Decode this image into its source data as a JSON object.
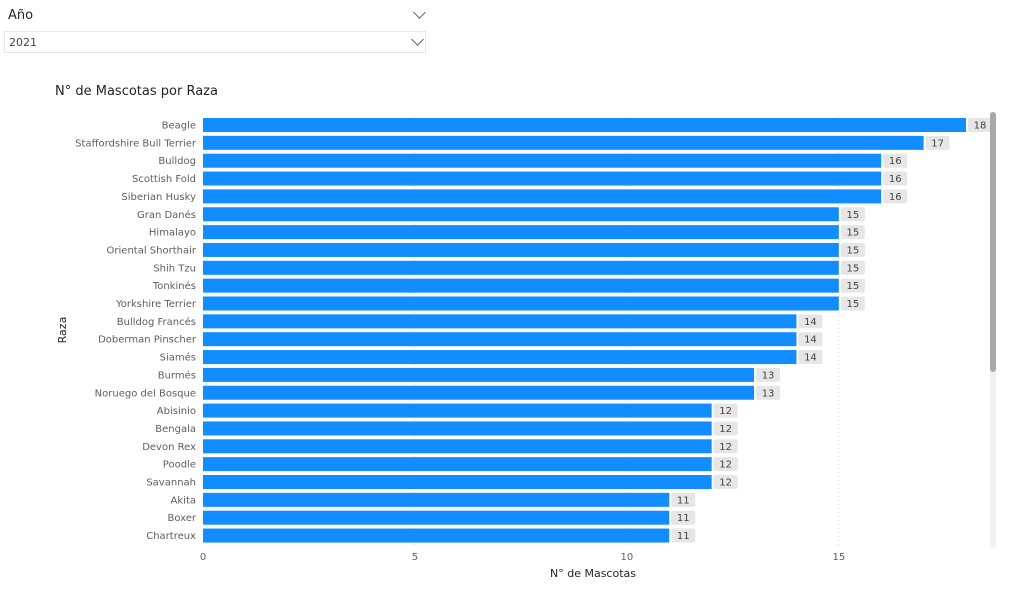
{
  "slicer": {
    "label": "Año",
    "selected": "2021"
  },
  "chart_data": {
    "type": "bar",
    "orientation": "horizontal",
    "title": "N° de Mascotas por Raza",
    "xlabel": "N° de Mascotas",
    "ylabel": "Raza",
    "xlim": [
      0,
      18
    ],
    "xticks": [
      "0",
      "5",
      "10",
      "15"
    ],
    "grid": true,
    "bar_color": "#118DFF",
    "categories": [
      "Beagle",
      "Staffordshire Bull Terrier",
      "Bulldog",
      "Scottish Fold",
      "Siberian Husky",
      "Gran Danés",
      "Himalayo",
      "Oriental Shorthair",
      "Shih Tzu",
      "Tonkinés",
      "Yorkshire Terrier",
      "Bulldog Francés",
      "Doberman Pinscher",
      "Siamés",
      "Burmés",
      "Noruego del Bosque",
      "Abisinio",
      "Bengala",
      "Devon Rex",
      "Poodle",
      "Savannah",
      "Akita",
      "Boxer",
      "Chartreux"
    ],
    "values": [
      18,
      17,
      16,
      16,
      16,
      15,
      15,
      15,
      15,
      15,
      15,
      14,
      14,
      14,
      13,
      13,
      12,
      12,
      12,
      12,
      12,
      11,
      11,
      11
    ]
  }
}
